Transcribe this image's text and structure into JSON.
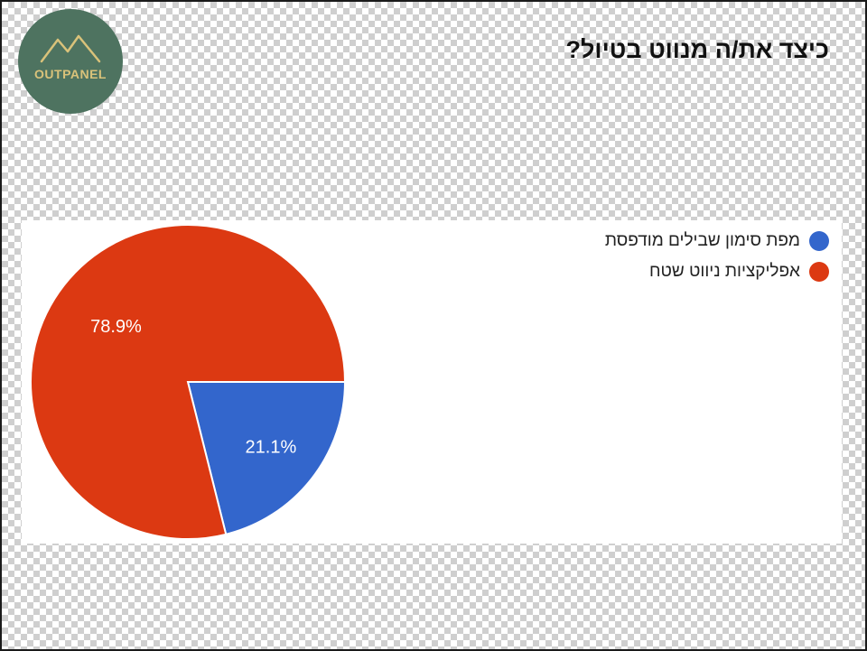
{
  "page": {
    "title": "כיצד את/ה מנווט בטיול?"
  },
  "logo": {
    "text": "OUTPANEL",
    "background_color": "#4e7360",
    "mark_color": "#d9c27a"
  },
  "chart_data": {
    "type": "pie",
    "title": "",
    "categories": [
      "מפת סימון שבילים מודפסת",
      "אפליקציות ניווט שטח"
    ],
    "values": [
      21.1,
      78.9
    ],
    "labels": [
      "21.1%",
      "78.9%"
    ],
    "colors": [
      "#3366cc",
      "#dc3912"
    ],
    "legend_position": "top-right"
  }
}
